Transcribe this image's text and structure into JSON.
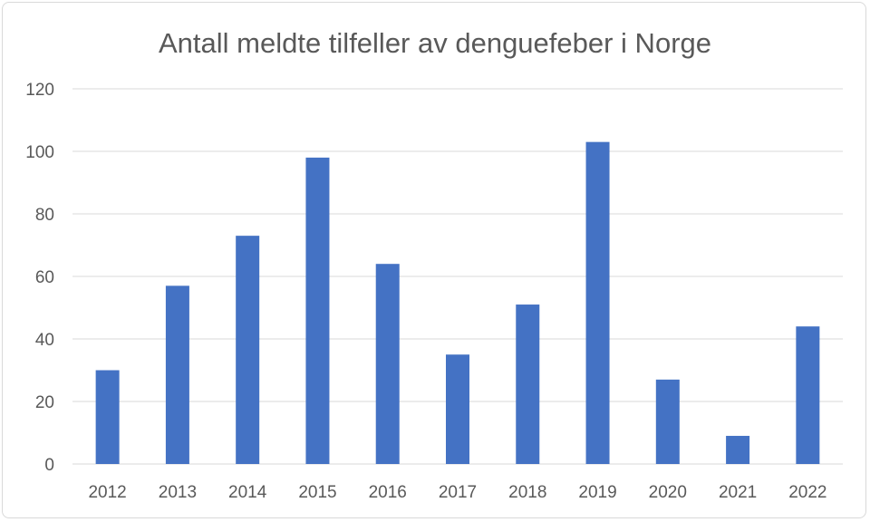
{
  "chart_data": {
    "type": "bar",
    "title": "Antall meldte tilfeller av denguefeber i Norge",
    "xlabel": "",
    "ylabel": "",
    "categories": [
      "2012",
      "2013",
      "2014",
      "2015",
      "2016",
      "2017",
      "2018",
      "2019",
      "2020",
      "2021",
      "2022"
    ],
    "values": [
      30,
      57,
      73,
      98,
      64,
      35,
      51,
      103,
      27,
      9,
      44
    ],
    "ylim": [
      0,
      120
    ],
    "yticks": [
      0,
      20,
      40,
      60,
      80,
      100,
      120
    ],
    "grid": true,
    "legend": "none",
    "bar_color": "#4472c4",
    "grid_color": "#d9d9d9"
  }
}
